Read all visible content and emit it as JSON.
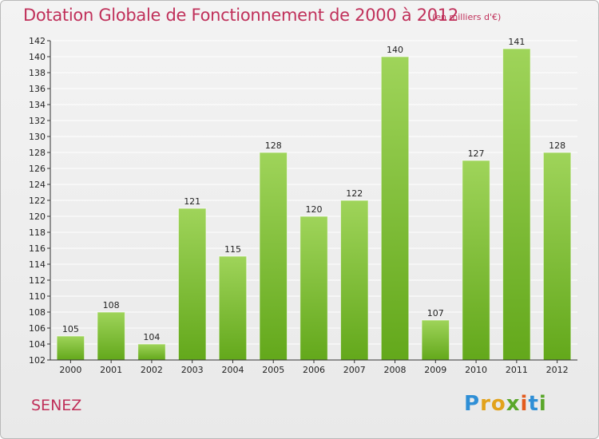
{
  "header": {
    "title": "Dotation Globale de Fonctionnement de 2000 à 2012",
    "subtitle": "(en milliers d'€)"
  },
  "footer": {
    "commune": "SENEZ",
    "logo_letters": [
      "P",
      "r",
      "o",
      "x",
      "i",
      "t",
      "i"
    ],
    "logo_colors": [
      "#2f8fd6",
      "#e2a21b",
      "#e2a21b",
      "#5aa72b",
      "#e35b1d",
      "#2f8fd6",
      "#5aa72b"
    ]
  },
  "colors": {
    "title": "#c0305a",
    "bar_light": "#9fd45a",
    "bar_dark": "#63a81b",
    "grid": "#ffffff",
    "axis": "#333333"
  },
  "chart_data": {
    "type": "bar",
    "title": "Dotation Globale de Fonctionnement de 2000 à 2012",
    "subtitle": "(en milliers d'€)",
    "categories": [
      "2000",
      "2001",
      "2002",
      "2003",
      "2004",
      "2005",
      "2006",
      "2007",
      "2008",
      "2009",
      "2010",
      "2011",
      "2012"
    ],
    "values": [
      105,
      108,
      104,
      121,
      115,
      128,
      120,
      122,
      140,
      107,
      127,
      141,
      128
    ],
    "ylim": [
      102,
      142
    ],
    "ytick_step": 2,
    "xlabel": "",
    "ylabel": "",
    "grid": true,
    "legend": "none",
    "data_labels": true
  }
}
